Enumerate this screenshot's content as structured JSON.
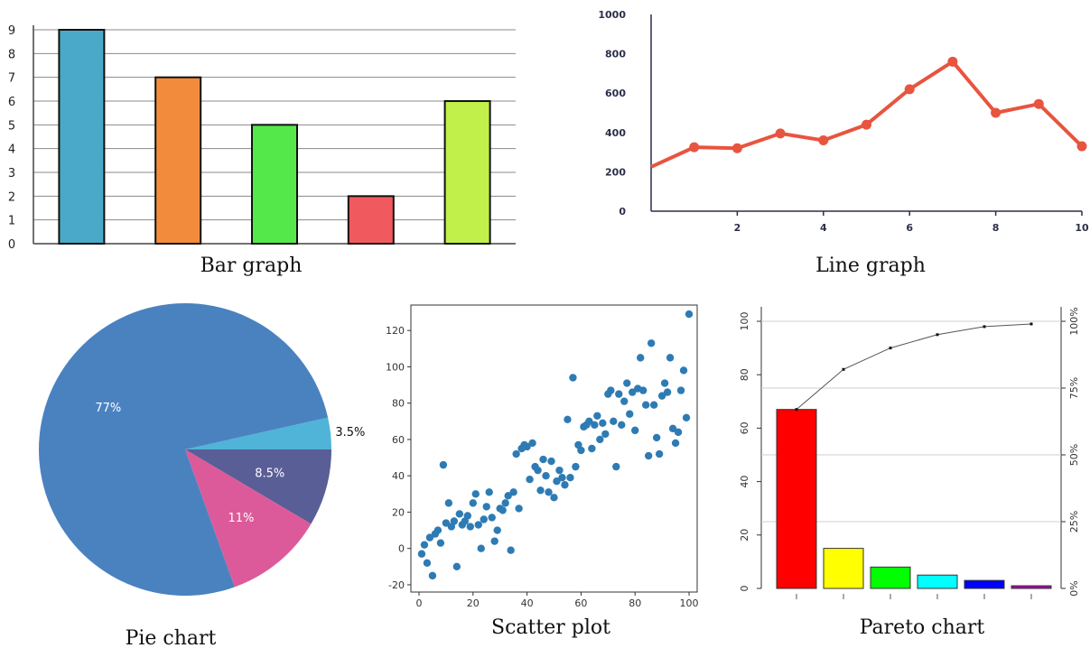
{
  "captions": {
    "bar": "Bar graph",
    "line": "Line graph",
    "pie": "Pie chart",
    "scatter": "Scatter plot",
    "pareto": "Pareto chart"
  },
  "chart_data": [
    {
      "type": "bar",
      "values": [
        9,
        7,
        5,
        2,
        6
      ],
      "colors": [
        "#4aa8c8",
        "#f28c3c",
        "#55e84a",
        "#f05a5f",
        "#c2f04a"
      ],
      "yticks": [
        "0",
        "1",
        "2",
        "3",
        "4",
        "5",
        "6",
        "7",
        "8",
        "9"
      ],
      "ylim": [
        0,
        9
      ],
      "grid": true
    },
    {
      "type": "line",
      "x": [
        0,
        1,
        2,
        3,
        4,
        5,
        6,
        7,
        8,
        9,
        10
      ],
      "values": [
        225,
        325,
        320,
        395,
        360,
        440,
        620,
        760,
        500,
        545,
        330
      ],
      "color": "#e8543f",
      "xticks": [
        "2",
        "4",
        "6",
        "8",
        "10"
      ],
      "yticks": [
        "0",
        "200",
        "400",
        "600",
        "800",
        "1000"
      ],
      "xlim": [
        0,
        10
      ],
      "ylim": [
        0,
        1000
      ]
    },
    {
      "type": "pie",
      "slices": [
        {
          "label": "77%",
          "value": 77,
          "color": "#4a82c0"
        },
        {
          "label": "11%",
          "value": 11,
          "color": "#dc5a9a"
        },
        {
          "label": "8.5%",
          "value": 8.5,
          "color": "#5a5e96"
        },
        {
          "label": "3.5%",
          "value": 3.5,
          "color": "#4fb4d8"
        }
      ]
    },
    {
      "type": "scatter",
      "color": "#2e7bb4",
      "xticks": [
        "0",
        "20",
        "40",
        "60",
        "80",
        "100"
      ],
      "yticks": [
        "-20",
        "0",
        "20",
        "40",
        "60",
        "80",
        "100",
        "120"
      ],
      "xlim": [
        -3,
        103
      ],
      "ylim": [
        -24,
        134
      ],
      "points": [
        [
          1,
          -3
        ],
        [
          2,
          2
        ],
        [
          3,
          -8
        ],
        [
          4,
          6
        ],
        [
          5,
          -15
        ],
        [
          6,
          8
        ],
        [
          7,
          10
        ],
        [
          8,
          3
        ],
        [
          9,
          46
        ],
        [
          10,
          14
        ],
        [
          11,
          25
        ],
        [
          12,
          12
        ],
        [
          13,
          15
        ],
        [
          14,
          -10
        ],
        [
          15,
          19
        ],
        [
          16,
          13
        ],
        [
          17,
          15
        ],
        [
          18,
          18
        ],
        [
          19,
          12
        ],
        [
          20,
          25
        ],
        [
          21,
          30
        ],
        [
          22,
          13
        ],
        [
          23,
          0
        ],
        [
          24,
          16
        ],
        [
          25,
          23
        ],
        [
          26,
          31
        ],
        [
          27,
          17
        ],
        [
          28,
          4
        ],
        [
          29,
          10
        ],
        [
          30,
          22
        ],
        [
          31,
          21
        ],
        [
          32,
          25
        ],
        [
          33,
          29
        ],
        [
          34,
          -1
        ],
        [
          35,
          31
        ],
        [
          36,
          52
        ],
        [
          37,
          22
        ],
        [
          38,
          55
        ],
        [
          39,
          57
        ],
        [
          40,
          56
        ],
        [
          41,
          38
        ],
        [
          42,
          58
        ],
        [
          43,
          45
        ],
        [
          44,
          43
        ],
        [
          45,
          32
        ],
        [
          46,
          49
        ],
        [
          47,
          40
        ],
        [
          48,
          31
        ],
        [
          49,
          48
        ],
        [
          50,
          28
        ],
        [
          51,
          37
        ],
        [
          52,
          43
        ],
        [
          53,
          39
        ],
        [
          54,
          35
        ],
        [
          55,
          71
        ],
        [
          56,
          39
        ],
        [
          57,
          94
        ],
        [
          58,
          45
        ],
        [
          59,
          57
        ],
        [
          60,
          54
        ],
        [
          61,
          67
        ],
        [
          62,
          68
        ],
        [
          63,
          70
        ],
        [
          64,
          55
        ],
        [
          65,
          68
        ],
        [
          66,
          73
        ],
        [
          67,
          60
        ],
        [
          68,
          69
        ],
        [
          69,
          63
        ],
        [
          70,
          85
        ],
        [
          71,
          87
        ],
        [
          72,
          70
        ],
        [
          73,
          45
        ],
        [
          74,
          85
        ],
        [
          75,
          68
        ],
        [
          76,
          81
        ],
        [
          77,
          91
        ],
        [
          78,
          74
        ],
        [
          79,
          86
        ],
        [
          80,
          65
        ],
        [
          81,
          88
        ],
        [
          82,
          105
        ],
        [
          83,
          87
        ],
        [
          84,
          79
        ],
        [
          85,
          51
        ],
        [
          86,
          113
        ],
        [
          87,
          79
        ],
        [
          88,
          61
        ],
        [
          89,
          52
        ],
        [
          90,
          84
        ],
        [
          91,
          91
        ],
        [
          92,
          86
        ],
        [
          93,
          105
        ],
        [
          94,
          66
        ],
        [
          95,
          58
        ],
        [
          96,
          64
        ],
        [
          97,
          87
        ],
        [
          98,
          98
        ],
        [
          99,
          72
        ],
        [
          100,
          129
        ]
      ]
    },
    {
      "type": "bar",
      "subtype": "pareto",
      "values": [
        67,
        15,
        8,
        5,
        3,
        1
      ],
      "colors": [
        "#ff0000",
        "#ffff00",
        "#00ff00",
        "#00ffff",
        "#0000ff",
        "#b000b0"
      ],
      "cumulative_percent": [
        67,
        82,
        90,
        95,
        98,
        99
      ],
      "yticks_left": [
        "0",
        "20",
        "40",
        "60",
        "80",
        "100"
      ],
      "yticks_right": [
        "0%",
        "25%",
        "50%",
        "75%",
        "100%"
      ],
      "ylim": [
        0,
        100
      ]
    }
  ]
}
